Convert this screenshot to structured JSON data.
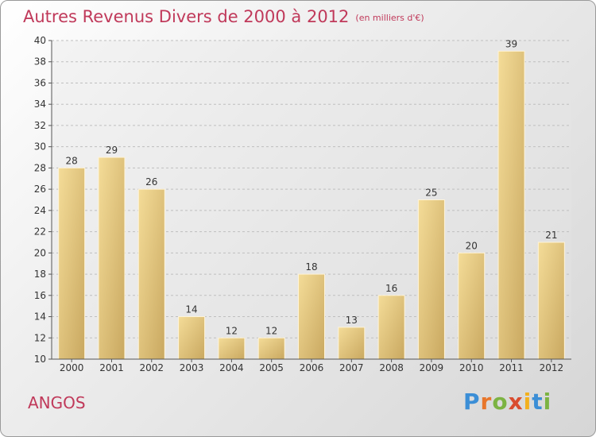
{
  "title_main": "Autres Revenus Divers de 2000 à 2012",
  "title_unit": "(en milliers d'€)",
  "place": "ANGOS",
  "brand": {
    "letters": [
      "P",
      "r",
      "o",
      "x",
      "i",
      "t",
      "i"
    ],
    "colors": [
      "#3b8ed6",
      "#e8762b",
      "#7cb342",
      "#d94c2f",
      "#f2b01e",
      "#3b8ed6",
      "#7cb342"
    ]
  },
  "colors": {
    "bar_light": "#f4dc98",
    "bar_dark": "#c9a860",
    "title": "#c0395a",
    "grid": "#bfbfbf"
  },
  "chart_data": {
    "type": "bar",
    "categories": [
      "2000",
      "2001",
      "2002",
      "2003",
      "2004",
      "2005",
      "2006",
      "2007",
      "2008",
      "2009",
      "2010",
      "2011",
      "2012"
    ],
    "values": [
      28,
      29,
      26,
      14,
      12,
      12,
      18,
      13,
      16,
      25,
      20,
      39,
      21
    ],
    "ylim": [
      10,
      40
    ],
    "yticks": [
      10,
      12,
      14,
      16,
      18,
      20,
      22,
      24,
      26,
      28,
      30,
      32,
      34,
      36,
      38,
      40
    ],
    "grid": true,
    "xlabel": "",
    "ylabel": ""
  }
}
